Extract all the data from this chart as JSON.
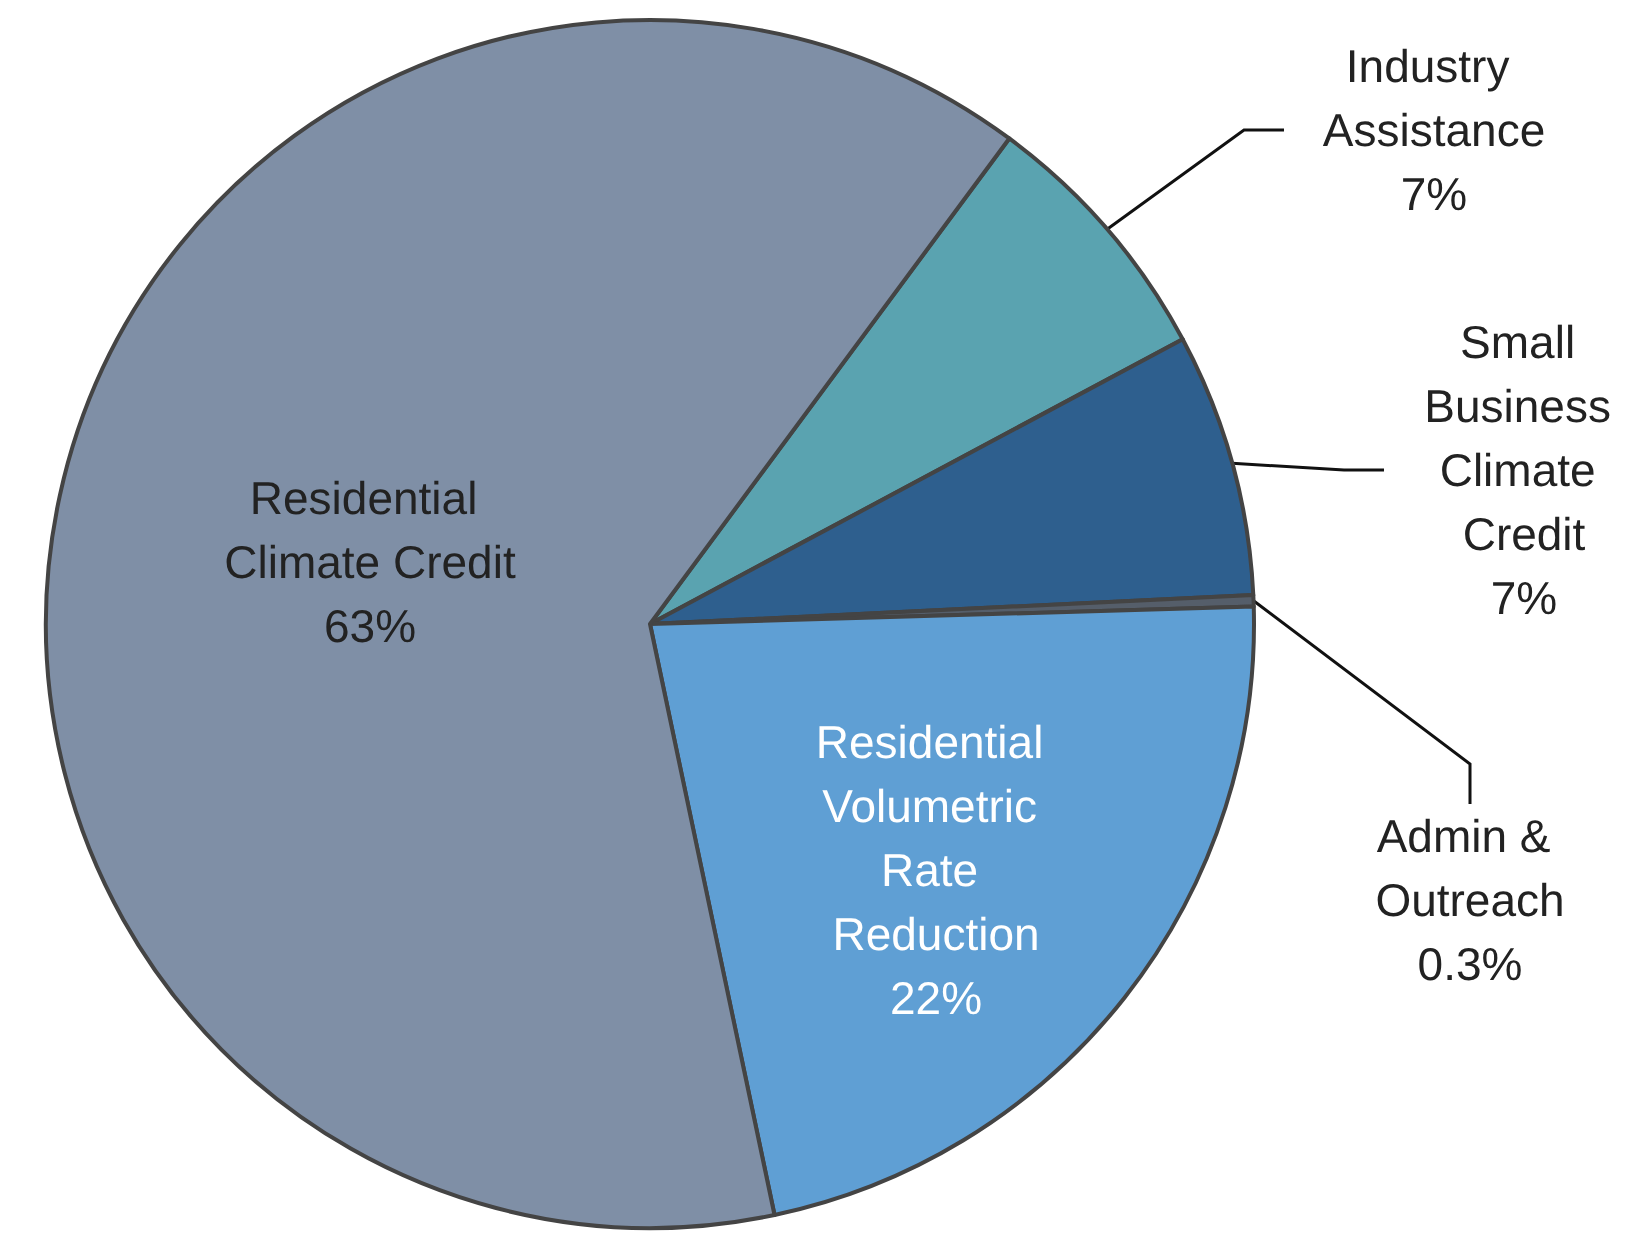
{
  "chart_data": {
    "type": "pie",
    "categories": [
      "Industry Assistance",
      "Small Business Climate Credit",
      "Admin & Outreach",
      "Residential Volumetric Rate Reduction",
      "Residential Climate Credit"
    ],
    "values": [
      7,
      7,
      0.3,
      22,
      63
    ],
    "colors": [
      "#5aa3b0",
      "#2e5f8e",
      "#555e6a",
      "#5f9fd4",
      "#7f8fa6"
    ],
    "value_labels": [
      "7%",
      "7%",
      "0.3%",
      "22%",
      "63%"
    ]
  }
}
